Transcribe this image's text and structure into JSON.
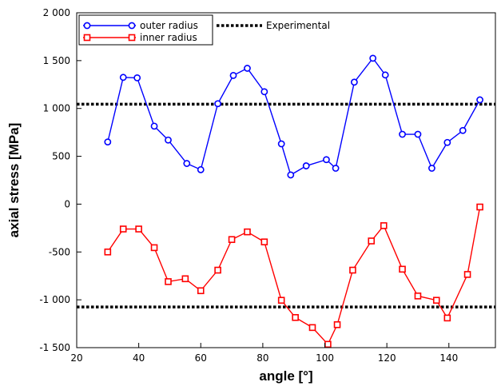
{
  "chart_data": {
    "type": "line",
    "title": "",
    "xlabel": "angle [°]",
    "ylabel": "axial stress [MPa]",
    "xlim": [
      20,
      155
    ],
    "ylim": [
      -1500,
      2000
    ],
    "xticks": [
      20,
      40,
      60,
      80,
      100,
      120,
      140
    ],
    "yticks": [
      -1500,
      -1000,
      -500,
      0,
      500,
      1000,
      1500,
      2000
    ],
    "xtick_labels": [
      "20",
      "40",
      "60",
      "80",
      "100",
      "120",
      "140"
    ],
    "ytick_labels": [
      "-1 500",
      "-1 000",
      "-500",
      "0",
      "500",
      "1 000",
      "1 500",
      "2 000"
    ],
    "grid": false,
    "legend": {
      "placement": "top-left",
      "entries": [
        "outer radius",
        "inner radius",
        "Experimental"
      ]
    },
    "series": [
      {
        "name": "outer radius",
        "color": "#0000ff",
        "marker": "circle",
        "x": [
          30,
          35,
          39.5,
          45,
          49.5,
          55.5,
          60,
          65.5,
          70.5,
          75,
          80.5,
          86,
          89,
          94,
          100.5,
          103.5,
          109.5,
          115.5,
          119.5,
          125,
          130,
          134.5,
          139.5,
          144.5,
          150
        ],
        "y": [
          650,
          1325,
          1320,
          815,
          670,
          425,
          360,
          1050,
          1345,
          1420,
          1175,
          630,
          305,
          400,
          465,
          375,
          1275,
          1525,
          1350,
          730,
          730,
          375,
          645,
          770,
          1090
        ]
      },
      {
        "name": "inner radius",
        "color": "#ff0000",
        "marker": "square",
        "x": [
          30,
          35,
          40,
          45,
          49.5,
          55,
          60,
          65.5,
          70,
          75,
          80.5,
          86,
          90.5,
          96,
          101,
          104,
          109,
          115,
          119,
          125,
          130,
          136,
          139.5,
          146,
          150
        ],
        "y": [
          -500,
          -260,
          -260,
          -455,
          -810,
          -780,
          -905,
          -690,
          -370,
          -290,
          -395,
          -1005,
          -1185,
          -1290,
          -1465,
          -1260,
          -690,
          -385,
          -225,
          -680,
          -960,
          -1005,
          -1190,
          -735,
          -30
        ]
      },
      {
        "name": "Experimental",
        "color": "#000000",
        "style": "dotted",
        "lines": [
          {
            "x": [
              20,
              155
            ],
            "y": [
              1045,
              1045
            ]
          },
          {
            "x": [
              20,
              155
            ],
            "y": [
              -1075,
              -1075
            ]
          }
        ]
      }
    ]
  }
}
